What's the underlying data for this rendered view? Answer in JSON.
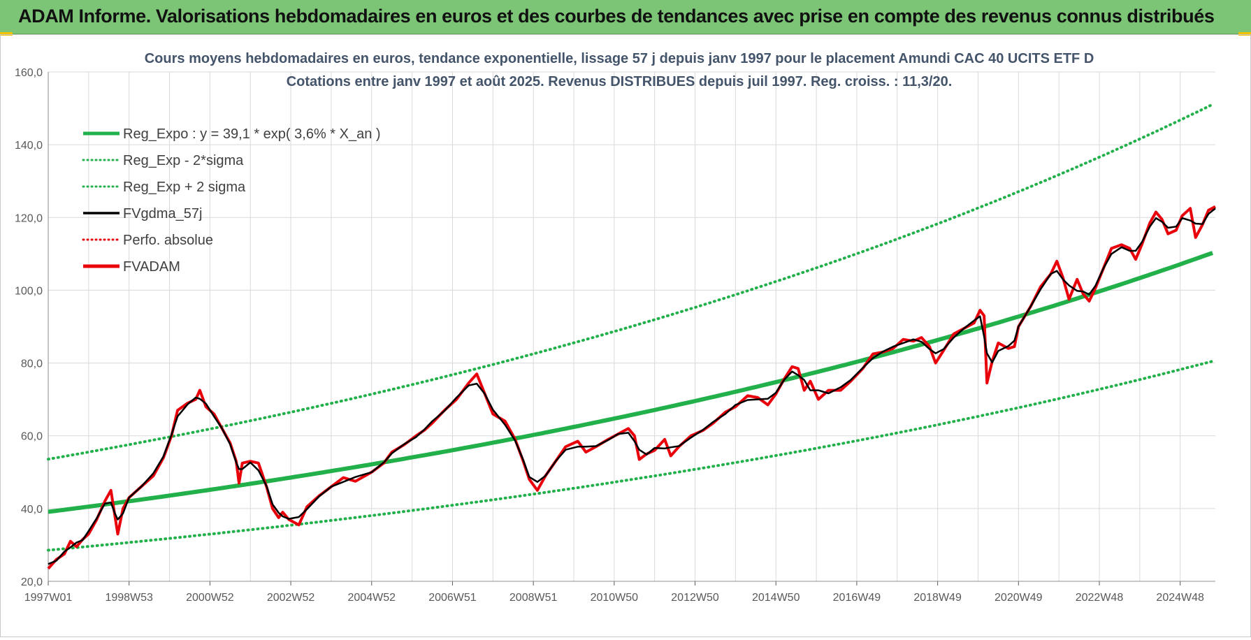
{
  "banner": {
    "title": "ADAM Informe. Valorisations hebdomadaires en euros et des courbes de tendances avec prise en compte des revenus connus distribués"
  },
  "colors": {
    "banner_bg": "#7cc576",
    "reg_expo": "#22b04b",
    "sigma": "#22b04b",
    "fvgdma": "#000000",
    "perfo": "#e8000b",
    "fvadam": "#e8000b",
    "title_text": "#44546a",
    "grid": "#d9d9d9"
  },
  "chart_data": {
    "type": "line",
    "title_line1": "Cours moyens hebdomadaires en euros, tendance exponentielle, lissage 57 j depuis janv 1997  pour le placement Amundi CAC 40 UCITS ETF D",
    "title_line2": "Cotations entre janv 1997 et août 2025.  Revenus DISTRIBUES depuis juil 1997.  Reg. croiss. : 11,3/20.",
    "x_tick_labels": [
      "1997W01",
      "1998W53",
      "2000W52",
      "2002W52",
      "2004W52",
      "2006W51",
      "2008W51",
      "2010W50",
      "2012W50",
      "2014W50",
      "2016W49",
      "2018W49",
      "2020W49",
      "2022W48",
      "2024W48"
    ],
    "x_tick_years": [
      1997.0,
      1999.0,
      2001.0,
      2003.0,
      2005.0,
      2007.0,
      2009.0,
      2011.0,
      2013.0,
      2015.0,
      2017.0,
      2019.0,
      2021.0,
      2023.0,
      2025.0
    ],
    "xlim": [
      1997.0,
      2025.87
    ],
    "ylim": [
      20,
      160
    ],
    "y_ticks": [
      20,
      40,
      60,
      80,
      100,
      120,
      140,
      160
    ],
    "y_tick_labels": [
      "20,0",
      "40,0",
      "60,0",
      "80,0",
      "100,0",
      "120,0",
      "140,0",
      "160,0"
    ],
    "grid": true,
    "legend_position": "top-left",
    "legend": [
      {
        "key": "reg_expo",
        "label": "Reg_Expo : y = 39,1 * exp( 3,6% *  X_an )",
        "style": "solid-thick",
        "color": "#22b04b"
      },
      {
        "key": "minus_2sigma",
        "label": "Reg_Exp - 2*sigma",
        "style": "dotted",
        "color": "#22b04b"
      },
      {
        "key": "plus_2sigma",
        "label": "Reg_Exp + 2 sigma",
        "style": "dotted",
        "color": "#22b04b"
      },
      {
        "key": "fvgdma",
        "label": "FVgdma_57j",
        "style": "solid",
        "color": "#000000"
      },
      {
        "key": "perfo",
        "label": "Perfo. absolue",
        "style": "dotted",
        "color": "#e8000b"
      },
      {
        "key": "fvadam",
        "label": "FVADAM",
        "style": "solid-thick",
        "color": "#e8000b"
      }
    ],
    "trend": {
      "a": 39.1,
      "k": 0.036,
      "x0": 1997.0,
      "minus_2sigma_factor": 0.73,
      "plus_2sigma_factor": 1.37
    },
    "fvadam_points": [
      [
        1997.0,
        23.5
      ],
      [
        1997.2,
        26.0
      ],
      [
        1997.4,
        27.5
      ],
      [
        1997.55,
        31.0
      ],
      [
        1997.7,
        29.5
      ],
      [
        1997.85,
        31.5
      ],
      [
        1998.0,
        33.0
      ],
      [
        1998.2,
        37.0
      ],
      [
        1998.4,
        42.0
      ],
      [
        1998.55,
        45.0
      ],
      [
        1998.65,
        38.0
      ],
      [
        1998.72,
        33.0
      ],
      [
        1998.85,
        40.0
      ],
      [
        1999.0,
        43.0
      ],
      [
        1999.3,
        46.0
      ],
      [
        1999.6,
        49.0
      ],
      [
        1999.85,
        54.0
      ],
      [
        2000.05,
        60.0
      ],
      [
        2000.2,
        67.0
      ],
      [
        2000.45,
        69.0
      ],
      [
        2000.65,
        70.0
      ],
      [
        2000.75,
        72.5
      ],
      [
        2000.9,
        68.0
      ],
      [
        2001.1,
        66.0
      ],
      [
        2001.3,
        62.0
      ],
      [
        2001.5,
        58.0
      ],
      [
        2001.65,
        53.0
      ],
      [
        2001.72,
        47.0
      ],
      [
        2001.8,
        52.5
      ],
      [
        2002.0,
        53.0
      ],
      [
        2002.2,
        52.5
      ],
      [
        2002.4,
        46.0
      ],
      [
        2002.55,
        40.0
      ],
      [
        2002.7,
        37.5
      ],
      [
        2002.8,
        39.0
      ],
      [
        2002.95,
        37.0
      ],
      [
        2003.2,
        35.5
      ],
      [
        2003.4,
        40.5
      ],
      [
        2003.7,
        43.5
      ],
      [
        2004.0,
        46.0
      ],
      [
        2004.3,
        48.5
      ],
      [
        2004.6,
        47.5
      ],
      [
        2005.0,
        50.0
      ],
      [
        2005.3,
        52.5
      ],
      [
        2005.5,
        55.5
      ],
      [
        2005.8,
        57.5
      ],
      [
        2006.1,
        60.0
      ],
      [
        2006.3,
        61.5
      ],
      [
        2006.5,
        63.5
      ],
      [
        2006.8,
        67.0
      ],
      [
        2007.1,
        70.0
      ],
      [
        2007.4,
        74.5
      ],
      [
        2007.6,
        77.0
      ],
      [
        2007.8,
        71.5
      ],
      [
        2008.0,
        66.0
      ],
      [
        2008.3,
        64.0
      ],
      [
        2008.55,
        59.0
      ],
      [
        2008.75,
        53.0
      ],
      [
        2008.9,
        48.0
      ],
      [
        2009.1,
        45.0
      ],
      [
        2009.3,
        49.0
      ],
      [
        2009.55,
        53.0
      ],
      [
        2009.8,
        57.0
      ],
      [
        2010.1,
        58.5
      ],
      [
        2010.3,
        55.5
      ],
      [
        2010.55,
        57.0
      ],
      [
        2010.85,
        59.0
      ],
      [
        2011.1,
        60.5
      ],
      [
        2011.35,
        62.0
      ],
      [
        2011.5,
        60.0
      ],
      [
        2011.62,
        53.5
      ],
      [
        2011.8,
        55.0
      ],
      [
        2012.0,
        56.0
      ],
      [
        2012.25,
        59.0
      ],
      [
        2012.4,
        54.5
      ],
      [
        2012.6,
        57.0
      ],
      [
        2012.9,
        60.0
      ],
      [
        2013.2,
        61.5
      ],
      [
        2013.45,
        63.5
      ],
      [
        2013.75,
        66.5
      ],
      [
        2014.0,
        68.0
      ],
      [
        2014.3,
        71.0
      ],
      [
        2014.55,
        70.5
      ],
      [
        2014.8,
        68.5
      ],
      [
        2015.0,
        71.5
      ],
      [
        2015.2,
        75.5
      ],
      [
        2015.4,
        79.0
      ],
      [
        2015.55,
        78.5
      ],
      [
        2015.7,
        72.5
      ],
      [
        2015.85,
        75.0
      ],
      [
        2016.05,
        70.0
      ],
      [
        2016.3,
        72.5
      ],
      [
        2016.6,
        72.5
      ],
      [
        2016.85,
        75.0
      ],
      [
        2017.15,
        78.5
      ],
      [
        2017.4,
        82.5
      ],
      [
        2017.65,
        83.0
      ],
      [
        2017.9,
        84.0
      ],
      [
        2018.15,
        86.5
      ],
      [
        2018.4,
        86.0
      ],
      [
        2018.6,
        87.0
      ],
      [
        2018.8,
        84.5
      ],
      [
        2018.95,
        80.0
      ],
      [
        2019.15,
        83.5
      ],
      [
        2019.4,
        88.0
      ],
      [
        2019.65,
        89.5
      ],
      [
        2019.9,
        91.0
      ],
      [
        2020.05,
        94.5
      ],
      [
        2020.15,
        93.0
      ],
      [
        2020.22,
        74.5
      ],
      [
        2020.35,
        80.5
      ],
      [
        2020.5,
        85.5
      ],
      [
        2020.75,
        84.0
      ],
      [
        2020.9,
        84.5
      ],
      [
        2021.0,
        90.0
      ],
      [
        2021.3,
        95.5
      ],
      [
        2021.55,
        101.0
      ],
      [
        2021.8,
        104.5
      ],
      [
        2021.95,
        108.0
      ],
      [
        2022.1,
        103.5
      ],
      [
        2022.25,
        97.5
      ],
      [
        2022.45,
        103.0
      ],
      [
        2022.6,
        99.0
      ],
      [
        2022.75,
        97.0
      ],
      [
        2022.9,
        100.5
      ],
      [
        2023.1,
        106.0
      ],
      [
        2023.3,
        111.5
      ],
      [
        2023.55,
        112.5
      ],
      [
        2023.75,
        111.5
      ],
      [
        2023.9,
        108.5
      ],
      [
        2024.05,
        112.5
      ],
      [
        2024.25,
        118.5
      ],
      [
        2024.4,
        121.5
      ],
      [
        2024.55,
        119.5
      ],
      [
        2024.7,
        115.5
      ],
      [
        2024.9,
        116.5
      ],
      [
        2025.05,
        120.5
      ],
      [
        2025.25,
        122.5
      ],
      [
        2025.38,
        114.5
      ],
      [
        2025.55,
        118.0
      ],
      [
        2025.7,
        122.0
      ],
      [
        2025.87,
        123.0
      ]
    ]
  }
}
